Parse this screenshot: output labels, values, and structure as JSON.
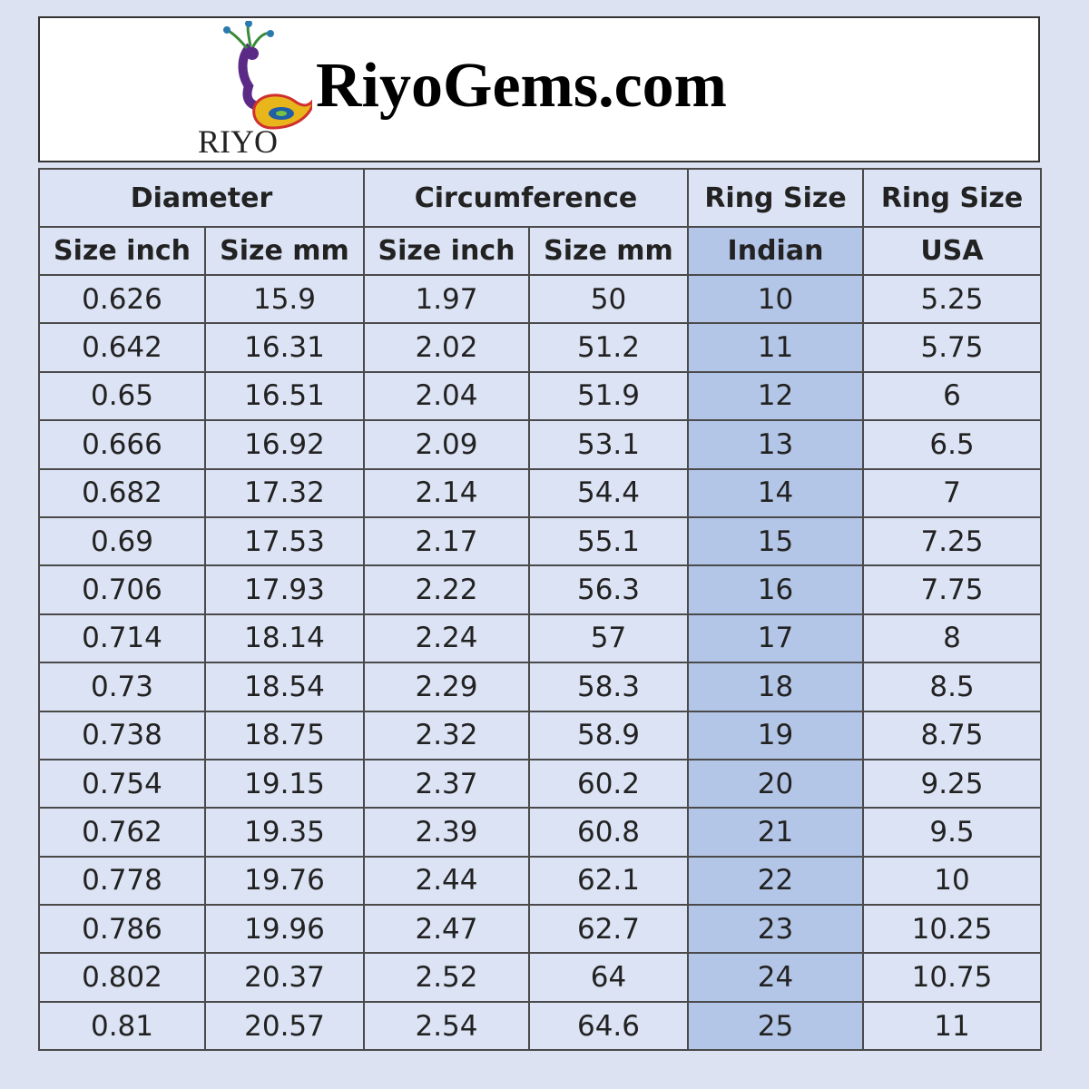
{
  "header": {
    "logo_text": "RIYO",
    "title": "RiyoGems.com"
  },
  "table": {
    "groups": [
      {
        "label": "Diameter",
        "span": 2
      },
      {
        "label": "Circumference",
        "span": 2
      },
      {
        "label": "Ring Size",
        "span": 1
      },
      {
        "label": "Ring Size",
        "span": 1
      }
    ],
    "columns": [
      "Size inch",
      "Size mm",
      "Size inch",
      "Size mm",
      "Indian",
      "USA"
    ],
    "rows": [
      [
        "0.626",
        "15.9",
        "1.97",
        "50",
        "10",
        "5.25"
      ],
      [
        "0.642",
        "16.31",
        "2.02",
        "51.2",
        "11",
        "5.75"
      ],
      [
        "0.65",
        "16.51",
        "2.04",
        "51.9",
        "12",
        "6"
      ],
      [
        "0.666",
        "16.92",
        "2.09",
        "53.1",
        "13",
        "6.5"
      ],
      [
        "0.682",
        "17.32",
        "2.14",
        "54.4",
        "14",
        "7"
      ],
      [
        "0.69",
        "17.53",
        "2.17",
        "55.1",
        "15",
        "7.25"
      ],
      [
        "0.706",
        "17.93",
        "2.22",
        "56.3",
        "16",
        "7.75"
      ],
      [
        "0.714",
        "18.14",
        "2.24",
        "57",
        "17",
        "8"
      ],
      [
        "0.73",
        "18.54",
        "2.29",
        "58.3",
        "18",
        "8.5"
      ],
      [
        "0.738",
        "18.75",
        "2.32",
        "58.9",
        "19",
        "8.75"
      ],
      [
        "0.754",
        "19.15",
        "2.37",
        "60.2",
        "20",
        "9.25"
      ],
      [
        "0.762",
        "19.35",
        "2.39",
        "60.8",
        "21",
        "9.5"
      ],
      [
        "0.778",
        "19.76",
        "2.44",
        "62.1",
        "22",
        "10"
      ],
      [
        "0.786",
        "19.96",
        "2.47",
        "62.7",
        "23",
        "10.25"
      ],
      [
        "0.802",
        "20.37",
        "2.52",
        "64",
        "24",
        "10.75"
      ],
      [
        "0.81",
        "20.57",
        "2.54",
        "64.6",
        "25",
        "11"
      ]
    ]
  }
}
